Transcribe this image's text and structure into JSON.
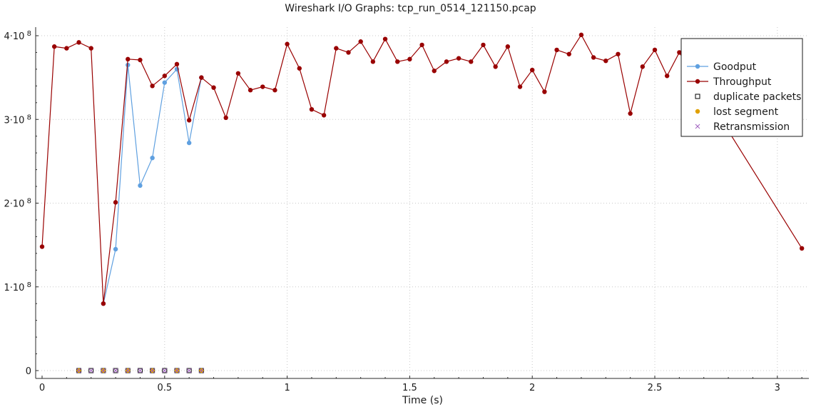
{
  "chart_data": {
    "type": "line",
    "title": "Wireshark I/O Graphs: tcp_run_0514_121150.pcap",
    "xlabel": "Time (s)",
    "ylabel": "",
    "xlim": [
      0,
      3.13
    ],
    "ylim": [
      0,
      400000000
    ],
    "x_ticks": [
      0,
      0.5,
      1,
      1.5,
      2,
      2.5,
      3
    ],
    "x_tick_labels": [
      "0",
      "0.5",
      "1",
      "1.5",
      "2",
      "2.5",
      "3"
    ],
    "y_ticks": [
      0,
      100000000,
      200000000,
      300000000,
      400000000
    ],
    "y_tick_labels": [
      {
        "base": "0",
        "exp": ""
      },
      {
        "base": "1·10",
        "exp": "8"
      },
      {
        "base": "2·10",
        "exp": "8"
      },
      {
        "base": "3·10",
        "exp": "8"
      },
      {
        "base": "4·10",
        "exp": "8"
      }
    ],
    "grid": true,
    "legend_position": "top-right",
    "series": [
      {
        "name": "Goodput",
        "color": "#5fa0e0",
        "marker": "circle",
        "line": true,
        "x": [
          0.25,
          0.3,
          0.35,
          0.4,
          0.45,
          0.5,
          0.55,
          0.6,
          0.65
        ],
        "y": [
          80000000,
          145000000,
          365000000,
          221000000,
          254000000,
          344000000,
          360000000,
          272000000,
          350000000
        ]
      },
      {
        "name": "Throughput",
        "color": "#990000",
        "marker": "circle",
        "line": true,
        "x": [
          0.0,
          0.05,
          0.1,
          0.15,
          0.2,
          0.25,
          0.3,
          0.35,
          0.4,
          0.45,
          0.5,
          0.55,
          0.6,
          0.65,
          0.7,
          0.75,
          0.8,
          0.85,
          0.9,
          0.95,
          1.0,
          1.05,
          1.1,
          1.15,
          1.2,
          1.25,
          1.3,
          1.35,
          1.4,
          1.45,
          1.5,
          1.55,
          1.6,
          1.65,
          1.7,
          1.75,
          1.8,
          1.85,
          1.9,
          1.95,
          2.0,
          2.05,
          2.1,
          2.15,
          2.2,
          2.25,
          2.3,
          2.35,
          2.4,
          2.45,
          2.5,
          2.55,
          2.6,
          3.1
        ],
        "y": [
          148000000,
          387000000,
          385000000,
          392000000,
          385000000,
          80000000,
          201000000,
          372000000,
          371000000,
          340000000,
          352000000,
          366000000,
          299000000,
          350000000,
          338000000,
          302000000,
          355000000,
          335000000,
          339000000,
          335000000,
          390000000,
          361000000,
          312000000,
          305000000,
          385000000,
          380000000,
          393000000,
          369000000,
          396000000,
          369000000,
          372000000,
          389000000,
          358000000,
          369000000,
          373000000,
          369000000,
          389000000,
          363000000,
          387000000,
          339000000,
          359000000,
          333000000,
          383000000,
          378000000,
          401000000,
          374000000,
          370000000,
          378000000,
          307000000,
          363000000,
          383000000,
          352000000,
          380000000,
          146000000
        ]
      },
      {
        "name": "duplicate packets",
        "color": "#000000",
        "marker": "square",
        "line": false,
        "x": [
          0.15,
          0.2,
          0.25,
          0.3,
          0.35,
          0.4,
          0.45,
          0.5,
          0.55,
          0.6,
          0.65
        ],
        "y": [
          0,
          0,
          0,
          0,
          0,
          0,
          0,
          0,
          0,
          0,
          0
        ]
      },
      {
        "name": "lost segment",
        "color": "#e0a000",
        "marker": "circle",
        "line": false,
        "x": [
          0.15,
          0.25,
          0.35,
          0.45,
          0.55,
          0.65
        ],
        "y": [
          0,
          0,
          0,
          0,
          0,
          0
        ]
      },
      {
        "name": "Retransmission",
        "color": "#a060c0",
        "marker": "cross",
        "line": false,
        "x": [
          0.15,
          0.2,
          0.25,
          0.3,
          0.35,
          0.4,
          0.45,
          0.5,
          0.55,
          0.6,
          0.65
        ],
        "y": [
          0,
          0,
          0,
          0,
          0,
          0,
          0,
          0,
          0,
          0,
          0
        ]
      }
    ]
  }
}
